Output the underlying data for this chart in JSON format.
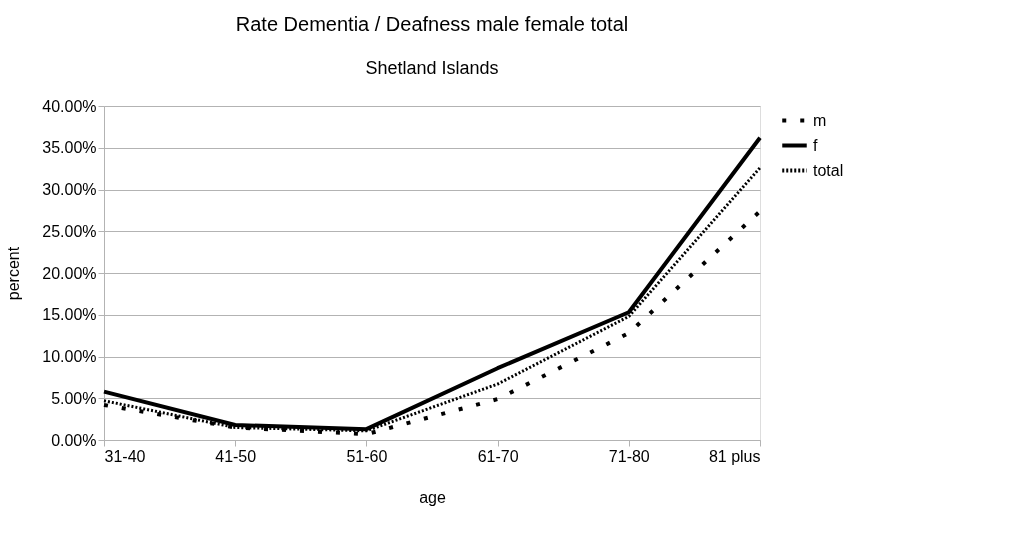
{
  "chart_data": {
    "type": "line",
    "title": "Rate Dementia / Deafness male female total",
    "subtitle": "Shetland Islands",
    "xlabel": "age",
    "ylabel": "percent",
    "categories": [
      "31-40",
      "41-50",
      "51-60",
      "61-70",
      "71-80",
      "81 plus"
    ],
    "series": [
      {
        "name": "m",
        "color": "#000000",
        "line_style": "dashed",
        "values": [
          4.2,
          1.5,
          0.7,
          4.9,
          12.8,
          27.4
        ]
      },
      {
        "name": "f",
        "color": "#000000",
        "line_style": "solid",
        "values": [
          5.8,
          1.8,
          1.3,
          8.6,
          15.3,
          36.2
        ]
      },
      {
        "name": "total",
        "color": "#000000",
        "line_style": "dotted",
        "values": [
          4.7,
          1.5,
          1.1,
          6.7,
          14.8,
          32.6
        ]
      }
    ],
    "ylim": [
      0,
      40
    ],
    "yticks": [
      {
        "value": 0,
        "label": "0.00%"
      },
      {
        "value": 5,
        "label": "5.00%"
      },
      {
        "value": 10,
        "label": "10.00%"
      },
      {
        "value": 15,
        "label": "15.00%"
      },
      {
        "value": 20,
        "label": "20.00%"
      },
      {
        "value": 25,
        "label": "25.00%"
      },
      {
        "value": 30,
        "label": "30.00%"
      },
      {
        "value": 35,
        "label": "35.00%"
      },
      {
        "value": 40,
        "label": "40.00%"
      }
    ],
    "grid": "y",
    "legend": "right",
    "marker": "none"
  }
}
